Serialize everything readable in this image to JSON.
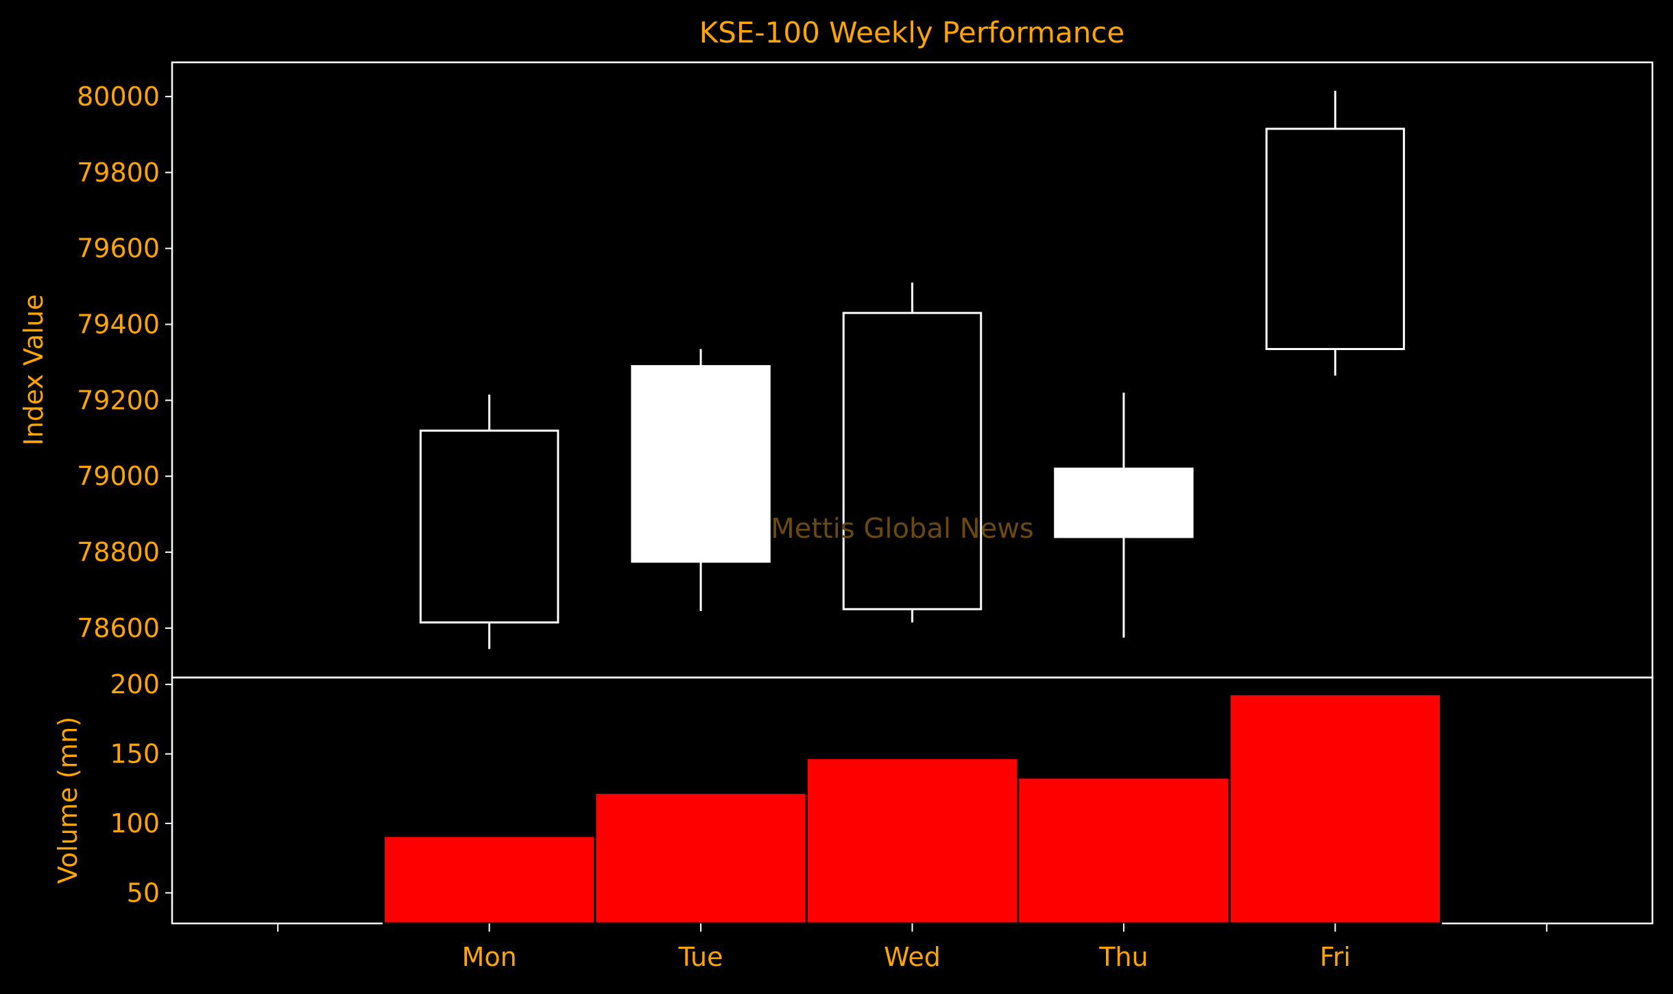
{
  "chart_data": {
    "type": "candlestick",
    "title": "KSE-100 Weekly Performance",
    "watermark": "Mettis Global News",
    "categories": [
      "Mon",
      "Tue",
      "Wed",
      "Thu",
      "Fri"
    ],
    "price_panel": {
      "ylabel": "Index Value",
      "ylim": [
        78470,
        80090
      ],
      "yticks": [
        78600,
        78800,
        79000,
        79200,
        79400,
        79600,
        79800,
        80000
      ],
      "series": [
        {
          "open": 78615,
          "high": 79215,
          "low": 78545,
          "close": 79120
        },
        {
          "open": 79290,
          "high": 79335,
          "low": 78645,
          "close": 78775
        },
        {
          "open": 78650,
          "high": 79510,
          "low": 78615,
          "close": 79430
        },
        {
          "open": 79020,
          "high": 79220,
          "low": 78575,
          "close": 78840
        },
        {
          "open": 79335,
          "high": 80015,
          "low": 79265,
          "close": 79915
        }
      ]
    },
    "volume_panel": {
      "ylabel": "Volume (mn)",
      "ylim": [
        28,
        205
      ],
      "yticks": [
        50,
        100,
        150,
        200
      ],
      "values": [
        91,
        122,
        147,
        133,
        193
      ]
    },
    "colors": {
      "background": "#000000",
      "text": "#FFA500",
      "candle_edge": "#FFFFFF",
      "candle_up_fill": "#000000",
      "candle_down_fill": "#FFFFFF",
      "volume_bar": "#FF0000",
      "spine": "#FFFFFF"
    },
    "legend": "none",
    "grid": false
  }
}
